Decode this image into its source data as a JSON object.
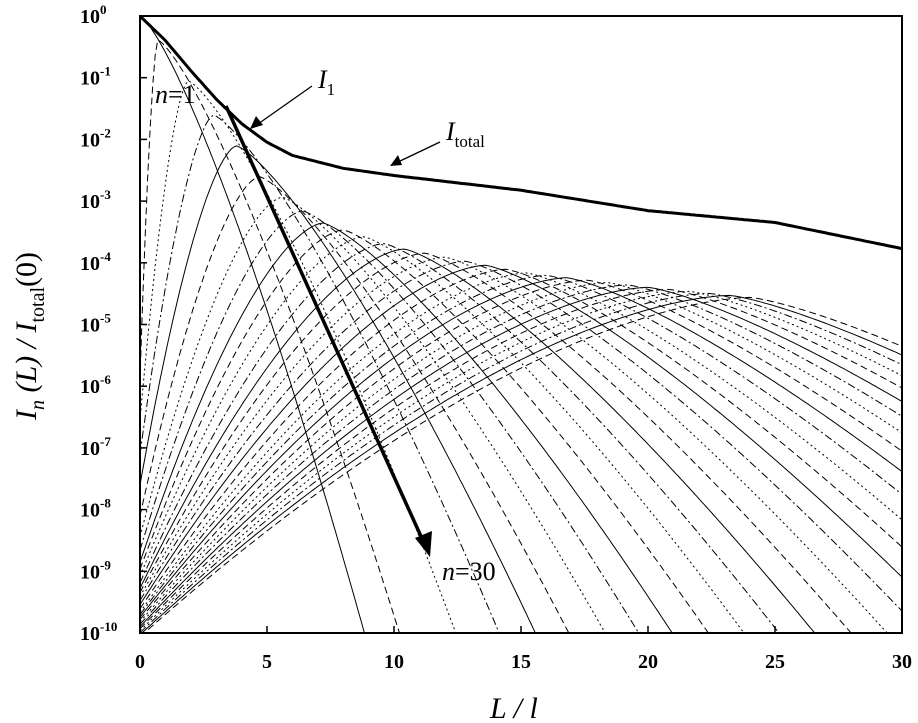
{
  "chart_data": {
    "type": "line",
    "x_axis": {
      "title_main": "L / l",
      "min": 0,
      "max": 30,
      "ticks": [
        0,
        5,
        10,
        15,
        20,
        25,
        30
      ],
      "tick_labels": [
        "0",
        "5",
        "10",
        "15",
        "20",
        "25",
        "30"
      ]
    },
    "y_axis": {
      "title_main": "I",
      "title_sub": "n",
      "title_mid": " (L) / I",
      "title_sub2": "total",
      "title_end": "(0)",
      "scale": "log",
      "min": 1e-10,
      "max": 1,
      "tick_base": "10",
      "tick_exponents": [
        "0",
        "-1",
        "-2",
        "-3",
        "-4",
        "-5",
        "-6",
        "-7",
        "-8",
        "-9",
        "-10"
      ]
    },
    "annotations": {
      "I1_main": "I",
      "I1_sub": "1",
      "Itotal_main": "I",
      "Itotal_sub": "total",
      "n1_var": "n",
      "n1_rest": "=1",
      "n30_var": "n",
      "n30_rest": "=30"
    },
    "model": {
      "description_free": true,
      "series_count": 30,
      "bold_series": "total",
      "total_points": [
        [
          0,
          1
        ],
        [
          1,
          0.4
        ],
        [
          2,
          0.13
        ],
        [
          3,
          0.045
        ],
        [
          4,
          0.018
        ],
        [
          5,
          0.009
        ],
        [
          6,
          0.0055
        ],
        [
          8,
          0.0034
        ],
        [
          10,
          0.0026
        ],
        [
          15,
          0.0015
        ],
        [
          20,
          0.0007
        ],
        [
          25,
          0.00045
        ],
        [
          30,
          0.00017
        ]
      ],
      "tail_points": [
        [
          0,
          1
        ],
        [
          5,
          0.0017
        ],
        [
          7,
          0.00047
        ],
        [
          10,
          0.00018
        ],
        [
          15,
          7e-05
        ],
        [
          20,
          4e-05
        ],
        [
          25,
          2.5e-05
        ],
        [
          30,
          1.7e-05
        ]
      ],
      "peak_positions": [
        0,
        0.7,
        1.9,
        2.9,
        3.8,
        4.7,
        5.6,
        6.4,
        7.2,
        8.0,
        8.8,
        9.6,
        10.4,
        11.2,
        12.0,
        12.8,
        13.6,
        14.4,
        15.2,
        16.0,
        16.8,
        17.6,
        18.4,
        19.2,
        20.0,
        20.8,
        21.6,
        22.4,
        23.2,
        24.0
      ]
    }
  }
}
